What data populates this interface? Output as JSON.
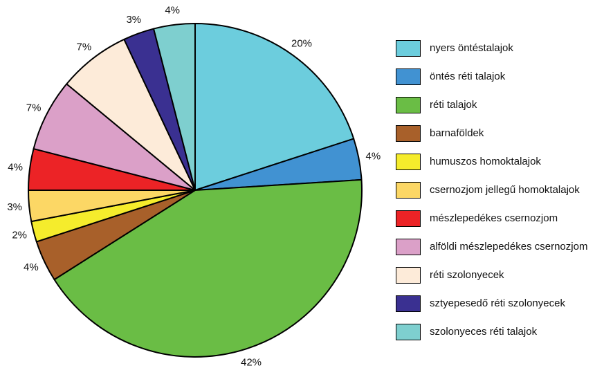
{
  "chart_data": {
    "type": "pie",
    "start_angle_deg": 0,
    "direction": "clockwise",
    "legend_position": "right",
    "slices": [
      {
        "label": "nyers öntéstalajok",
        "value": 20,
        "display": "20%",
        "color": "#6ccddd"
      },
      {
        "label": "öntés réti talajok",
        "value": 4,
        "display": "4%",
        "color": "#4192d2"
      },
      {
        "label": "réti talajok",
        "value": 42,
        "display": "42%",
        "color": "#6abd45"
      },
      {
        "label": "barnaföldek",
        "value": 4,
        "display": "4%",
        "color": "#a8602a"
      },
      {
        "label": "humuszos homoktalajok",
        "value": 2,
        "display": "2%",
        "color": "#f5ec2c"
      },
      {
        "label": "csernozjom jellegű homoktalajok",
        "value": 3,
        "display": "3%",
        "color": "#fcd765"
      },
      {
        "label": "mészlepedékes csernozjom",
        "value": 4,
        "display": "4%",
        "color": "#ec2326"
      },
      {
        "label": "alföldi mészlepedékes csernozjom",
        "value": 7,
        "display": "7%",
        "color": "#dba0c8"
      },
      {
        "label": "réti szolonyecek",
        "value": 7,
        "display": "7%",
        "color": "#fdebd9"
      },
      {
        "label": "sztyepesedő réti szolonyecek",
        "value": 3,
        "display": "3%",
        "color": "#3a3091"
      },
      {
        "label": "szolonyeces réti talajok",
        "value": 4,
        "display": "4%",
        "color": "#7ecfcf"
      }
    ]
  }
}
